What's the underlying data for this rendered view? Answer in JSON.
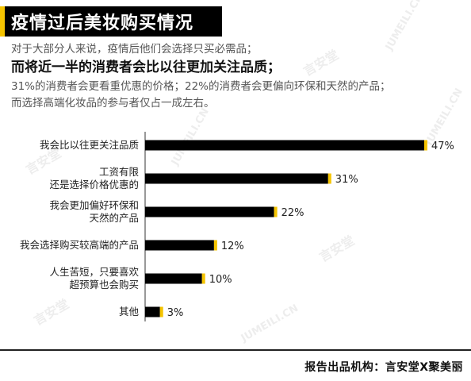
{
  "title": "疫情过后美妆购买情况",
  "intro": {
    "line1": "对于大部分人来说，疫情后他们会选择只买必需品；",
    "line2": "而将近一半的消费者会比以往更加关注品质；",
    "line3": "31%的消费者会更看重优惠的价格；22%的消费者会更偏向环保和天然的产品；",
    "line4": "而选择高端化妆品的参与者仅占一成左右。"
  },
  "chart_data": {
    "type": "bar",
    "orientation": "horizontal",
    "categories": [
      "我会比以往更关注品质",
      "工资有限\n还是选择价格优惠的",
      "我会更加偏好环保和\n天然的产品",
      "我会选择购买较高端的产品",
      "人生苦短，只要喜欢\n超预算也会购买",
      "其他"
    ],
    "values": [
      47,
      31,
      22,
      12,
      10,
      3
    ],
    "value_labels": [
      "47%",
      "31%",
      "22%",
      "12%",
      "10%",
      "3%"
    ],
    "xlim": [
      0,
      50
    ],
    "colors": {
      "bar": "#000000",
      "cap": "#f5c400",
      "axis": "#333333"
    },
    "grid": false,
    "legend": "none"
  },
  "watermarks": [
    "言安堂",
    "JUMEILI.CN"
  ],
  "footer": "报告出品机构：言安堂X聚美丽"
}
